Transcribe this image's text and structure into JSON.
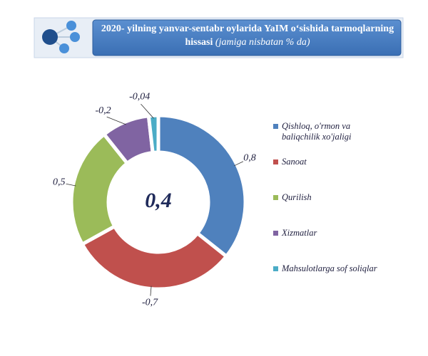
{
  "chart_data": {
    "type": "donut",
    "title": "2020- yilning yanvar-sentabr oylarida YaIM o‘sishida tarmoqlarning hissasi",
    "subtitle": "(jamiga nisbatan % da)",
    "total": {
      "value": 0.4,
      "label": "0,4"
    },
    "categories": [
      "Qishloq, o'rmon va baliqchilik xo'jaligi",
      "Sanoat",
      "Qurilish",
      "Xizmatlar",
      "Mahsulotlarga sof soliqlar"
    ],
    "values": [
      0.8,
      -0.7,
      0.5,
      -0.2,
      -0.04
    ],
    "value_labels": [
      "0,8",
      "-0,7",
      "0,5",
      "-0,2",
      "-0,04"
    ],
    "colors": [
      "#4f81bd",
      "#c0504d",
      "#9bbb59",
      "#8064a2",
      "#4bacc6"
    ]
  }
}
